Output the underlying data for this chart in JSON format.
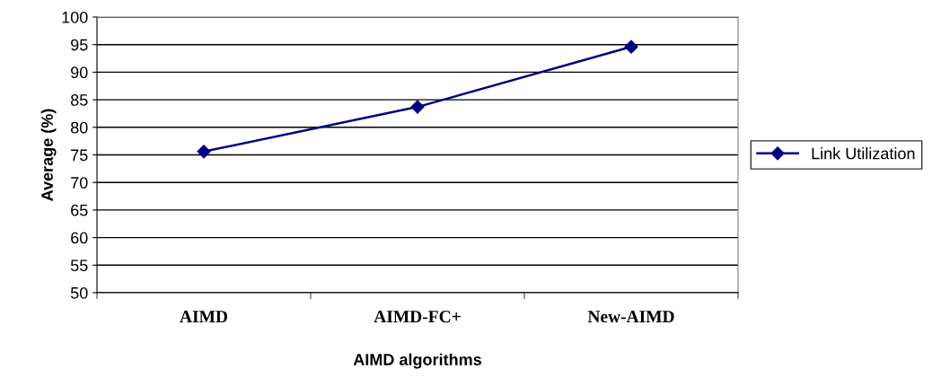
{
  "chart_data": {
    "type": "line",
    "xlabel": "AIMD algorithms",
    "ylabel": "Average (%)",
    "categories": [
      "AIMD",
      "AIMD-FC+",
      "New-AIMD"
    ],
    "series": [
      {
        "name": "Link Utilization",
        "color": "#000080",
        "values": [
          75.6,
          83.7,
          94.6
        ]
      }
    ],
    "ylim": [
      50,
      100
    ],
    "yticks": [
      50,
      55,
      60,
      65,
      70,
      75,
      80,
      85,
      90,
      95,
      100
    ],
    "grid": "y",
    "legend": "right",
    "marker": "diamond",
    "line_style": "solid"
  }
}
